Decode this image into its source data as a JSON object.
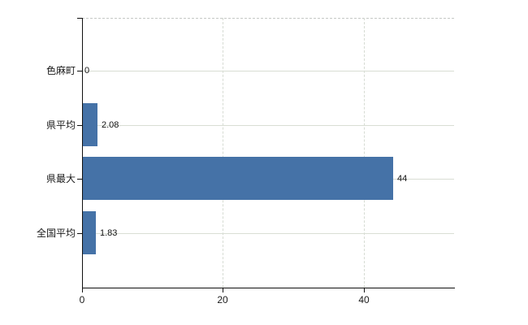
{
  "chart_data": {
    "type": "bar",
    "orientation": "horizontal",
    "title": "",
    "categories": [
      "色麻町",
      "県平均",
      "県最大",
      "全国平均"
    ],
    "values": [
      0,
      2.08,
      44,
      1.83
    ],
    "data_labels": [
      "0",
      "2.08",
      "44",
      "1.83"
    ],
    "x_ticks": [
      0,
      20,
      40
    ],
    "x_tick_labels": [
      "0",
      "20",
      "40"
    ],
    "xlim": [
      0,
      52.8
    ],
    "grid": true,
    "legend": "none",
    "colors": {
      "bar": "#4572a7",
      "category_gridline": "#d9ded4",
      "vertical_gridline": "#d6dbd3",
      "plot_top_border": "#c6c8c6",
      "axis_line": "#111111",
      "text": "#1a1a1a",
      "background": "#ffffff"
    }
  }
}
